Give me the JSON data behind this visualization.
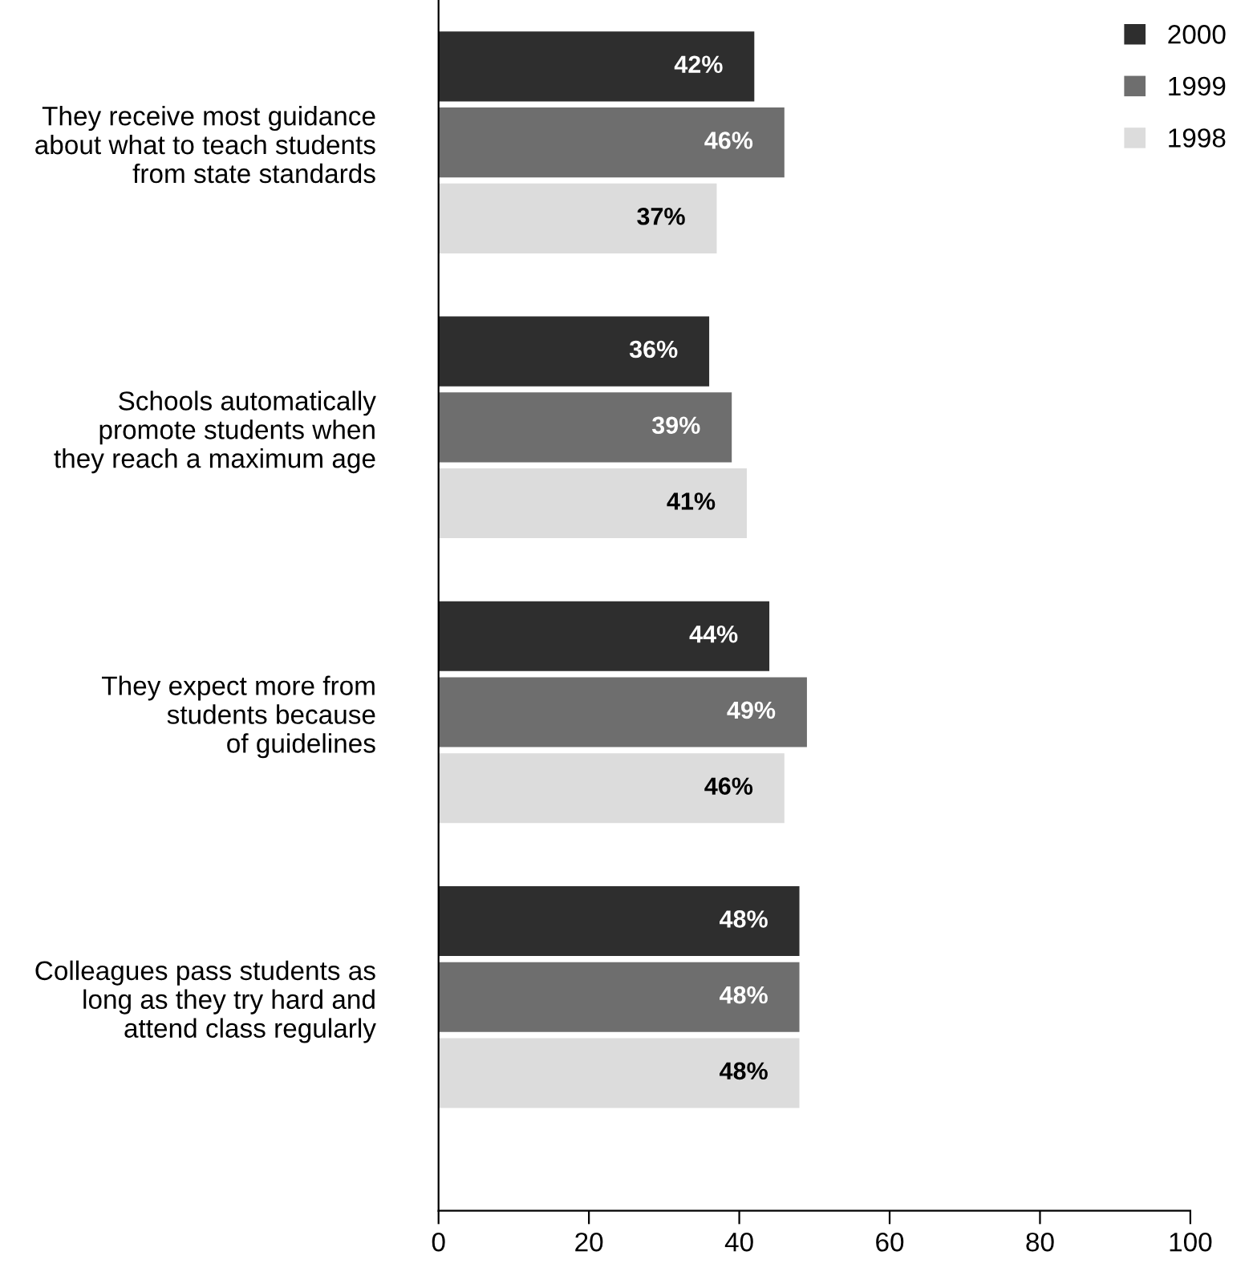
{
  "chart_data": {
    "type": "bar",
    "orientation": "horizontal",
    "categories": [
      "They receive most guidance\nabout what to teach students\nfrom state standards",
      "Schools automatically\npromote students when\nthey reach a maximum age",
      "They expect more from\nstudents because\nof guidelines",
      "Colleagues pass students as\nlong as they try hard and\nattend class regularly"
    ],
    "series": [
      {
        "name": "2000",
        "color": "#2e2e2e",
        "values": [
          42,
          36,
          44,
          48
        ],
        "value_labels": [
          "42%",
          "36%",
          "44%",
          "48%"
        ]
      },
      {
        "name": "1999",
        "color": "#6e6e6e",
        "values": [
          46,
          39,
          49,
          48
        ],
        "value_labels": [
          "46%",
          "39%",
          "49%",
          "48%"
        ]
      },
      {
        "name": "1998",
        "color": "#dcdcdc",
        "values": [
          37,
          41,
          46,
          48
        ],
        "value_labels": [
          "37%",
          "41%",
          "46%",
          "48%"
        ]
      }
    ],
    "xlim": [
      0,
      100
    ],
    "xticks": [
      0,
      20,
      40,
      60,
      80,
      100
    ],
    "grid": false,
    "legend": "top right"
  }
}
